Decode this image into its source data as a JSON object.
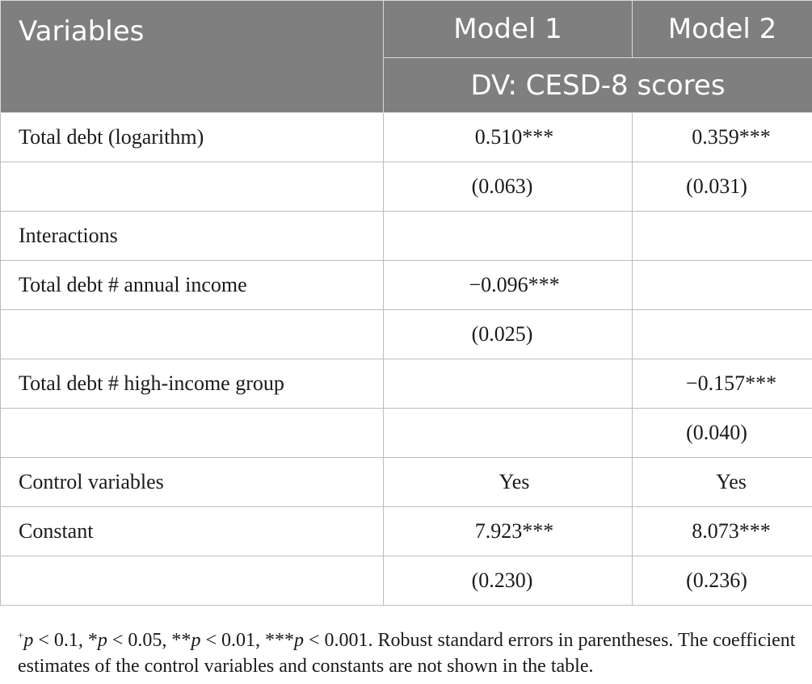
{
  "header": {
    "variables": "Variables",
    "model1": "Model 1",
    "model2": "Model 2",
    "dv": "DV: CESD-8 scores"
  },
  "rows": [
    {
      "label": "Total debt (logarithm)",
      "m1": "0.510***",
      "m2": "0.359***"
    },
    {
      "label": "",
      "m1": "(0.063)",
      "m2": "(0.031)"
    },
    {
      "label": "Interactions",
      "m1": "",
      "m2": ""
    },
    {
      "label": "Total debt # annual income",
      "m1": "−0.096***",
      "m2": ""
    },
    {
      "label": "",
      "m1": "(0.025)",
      "m2": ""
    },
    {
      "label": "Total debt # high-income group",
      "m1": "",
      "m2": "−0.157***"
    },
    {
      "label": "",
      "m1": "",
      "m2": "(0.040)"
    },
    {
      "label": "Control variables",
      "m1": "Yes",
      "m2": "Yes"
    },
    {
      "label": "Constant",
      "m1": "7.923***",
      "m2": "8.073***"
    },
    {
      "label": "",
      "m1": "(0.230)",
      "m2": "(0.236)"
    }
  ],
  "note": {
    "plus": "+",
    "p_symbol": "p",
    "thr1": " < 0.1, *",
    "thr2": " < 0.05, **",
    "thr3": " < 0.01, ***",
    "thr4": " < 0.001. Robust standard errors in parentheses. The coefficient estimates of the control variables and constants are not shown in the table."
  }
}
